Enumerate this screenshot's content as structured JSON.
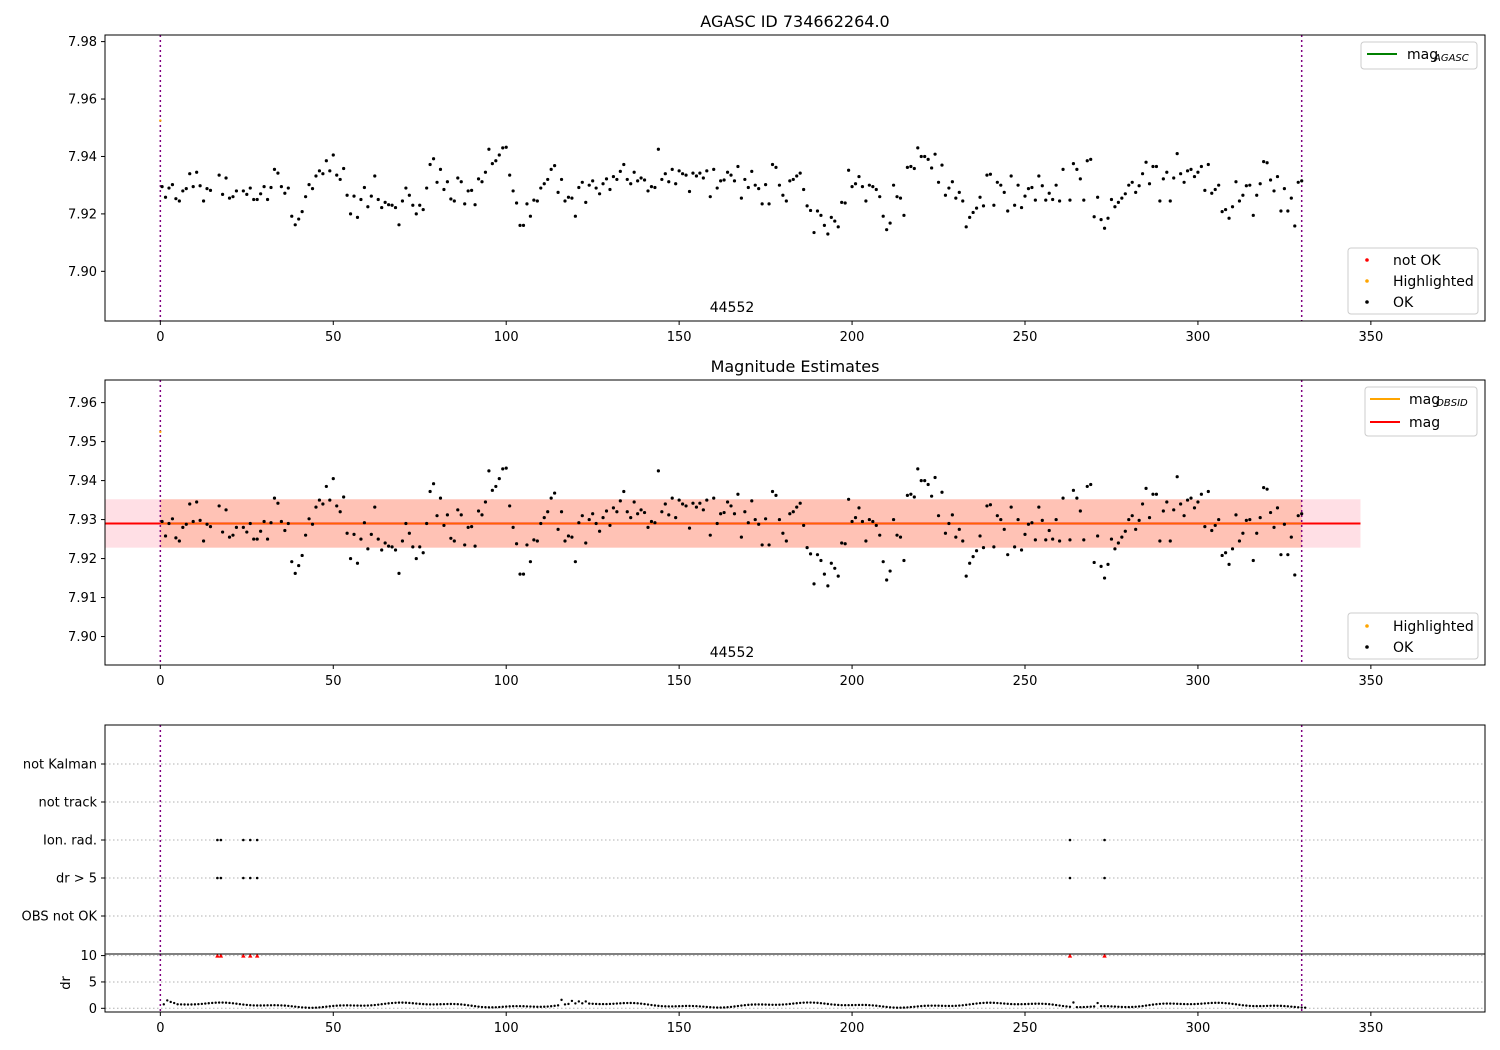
{
  "chart_data": [
    {
      "type": "scatter",
      "title": "AGASC ID 734662264.0",
      "xlim": [
        -16,
        383
      ],
      "ylim": [
        7.8827,
        7.9823
      ],
      "xticks": [
        0,
        50,
        100,
        150,
        200,
        250,
        300,
        350
      ],
      "yticks": [
        7.9,
        7.92,
        7.94,
        7.96,
        7.98
      ],
      "ytick_labels": [
        "7.90",
        "7.92",
        "7.94",
        "7.96",
        "7.98"
      ],
      "annotation": "44552",
      "vlines": [
        0,
        330
      ],
      "grid": false,
      "legend_lines": {
        "position": "top-right",
        "entries": [
          {
            "main": "mag",
            "sub": "AGASC",
            "color": "#008000"
          }
        ]
      },
      "legend_points": {
        "position": "bottom-right",
        "entries": [
          {
            "label": "not OK",
            "color": "#ff0000"
          },
          {
            "label": "Highlighted",
            "color": "#ffa500"
          },
          {
            "label": "OK",
            "color": "#000000"
          }
        ]
      },
      "highlighted_point": {
        "x": 0,
        "y": 7.9525
      },
      "series_ok_shared": true
    },
    {
      "type": "scatter",
      "title": "Magnitude Estimates",
      "xlim": [
        -16,
        383
      ],
      "ylim": [
        7.8927,
        7.9658
      ],
      "xticks": [
        0,
        50,
        100,
        150,
        200,
        250,
        300,
        350
      ],
      "yticks": [
        7.9,
        7.91,
        7.92,
        7.93,
        7.94,
        7.95,
        7.96
      ],
      "ytick_labels": [
        "7.90",
        "7.91",
        "7.92",
        "7.93",
        "7.94",
        "7.95",
        "7.96"
      ],
      "annotation": "44552",
      "vlines": [
        0,
        330
      ],
      "grid": false,
      "mag_line": {
        "y": 7.929,
        "x0": -16,
        "x1": 347,
        "color": "#ff0000"
      },
      "band_outer": {
        "y0": 7.9228,
        "y1": 7.9352,
        "x0": -16,
        "x1": 347,
        "color": "#ffc0cb"
      },
      "band_inner": {
        "y0": 7.9228,
        "y1": 7.9352,
        "x0": 0,
        "x1": 330,
        "color": "#ffa07a"
      },
      "legend_lines": {
        "position": "top-right",
        "entries": [
          {
            "main": "mag",
            "sub": "OBSID",
            "color": "#ffa500"
          },
          {
            "main": "mag",
            "sub": "",
            "color": "#ff0000"
          }
        ]
      },
      "legend_points": {
        "position": "bottom-right",
        "entries": [
          {
            "label": "Highlighted",
            "color": "#ffa500"
          },
          {
            "label": "OK",
            "color": "#000000"
          }
        ]
      },
      "highlighted_point": {
        "x": 0,
        "y": 7.9525
      }
    },
    {
      "type": "scatter",
      "title": "",
      "xlim": [
        -16,
        383
      ],
      "categories": [
        "not Kalman",
        "not track",
        "Ion. rad.",
        "dr > 5",
        "OBS not OK"
      ],
      "vlines": [
        0,
        330
      ],
      "flags": {
        "Ion. rad.": [
          16.5,
          17.5,
          24,
          26,
          28,
          263,
          273
        ],
        "dr > 5": [
          16.5,
          17.5,
          24,
          26,
          28,
          263,
          273
        ]
      }
    },
    {
      "type": "scatter",
      "title": "",
      "xlim": [
        -16,
        383
      ],
      "ylim": [
        -0.7,
        10.3
      ],
      "xticks": [
        0,
        50,
        100,
        150,
        200,
        250,
        300,
        350
      ],
      "yticks": [
        0,
        5,
        10
      ],
      "ytick_labels": [
        "0",
        "5",
        "10"
      ],
      "ylabel": "dr",
      "vlines": [
        0,
        330
      ],
      "clipped_markers": [
        16.5,
        17.5,
        24,
        26,
        28,
        263,
        273
      ],
      "clip_value": 10
    }
  ],
  "mag_points": [
    [
      0.5,
      7.9295
    ],
    [
      1.5,
      7.9258
    ],
    [
      2.5,
      7.929
    ],
    [
      3.5,
      7.9302
    ],
    [
      4.5,
      7.9253
    ],
    [
      5.5,
      7.9245
    ],
    [
      6.5,
      7.928
    ],
    [
      7.5,
      7.9288
    ],
    [
      8.5,
      7.934
    ],
    [
      9.5,
      7.9295
    ],
    [
      10.5,
      7.9345
    ],
    [
      11.5,
      7.9298
    ],
    [
      12.5,
      7.9245
    ],
    [
      13.5,
      7.9288
    ],
    [
      14.5,
      7.9282
    ],
    [
      17,
      7.9335
    ],
    [
      18,
      7.9268
    ],
    [
      19,
      7.9325
    ],
    [
      20,
      7.9255
    ],
    [
      21,
      7.926
    ],
    [
      22,
      7.928
    ],
    [
      24,
      7.928
    ],
    [
      25,
      7.9268
    ],
    [
      26,
      7.929
    ],
    [
      27,
      7.925
    ],
    [
      28,
      7.925
    ],
    [
      29,
      7.927
    ],
    [
      30,
      7.9295
    ],
    [
      31,
      7.925
    ],
    [
      32,
      7.9292
    ],
    [
      33,
      7.9355
    ],
    [
      34,
      7.9342
    ],
    [
      35,
      7.9295
    ],
    [
      36,
      7.9272
    ],
    [
      37,
      7.929
    ],
    [
      38,
      7.9192
    ],
    [
      39,
      7.9162
    ],
    [
      40,
      7.9182
    ],
    [
      41,
      7.9208
    ],
    [
      42,
      7.926
    ],
    [
      43,
      7.9302
    ],
    [
      44,
      7.9288
    ],
    [
      45,
      7.9332
    ],
    [
      46,
      7.935
    ],
    [
      47,
      7.934
    ],
    [
      48,
      7.9385
    ],
    [
      49,
      7.935
    ],
    [
      50,
      7.9405
    ],
    [
      51,
      7.9335
    ],
    [
      52,
      7.932
    ],
    [
      53,
      7.9358
    ],
    [
      54,
      7.9265
    ],
    [
      55,
      7.92
    ],
    [
      56,
      7.9262
    ],
    [
      57,
      7.9188
    ],
    [
      58,
      7.925
    ],
    [
      59,
      7.9292
    ],
    [
      60,
      7.9225
    ],
    [
      61,
      7.9262
    ],
    [
      62,
      7.9332
    ],
    [
      63,
      7.925
    ],
    [
      64,
      7.9222
    ],
    [
      65,
      7.924
    ],
    [
      66,
      7.9232
    ],
    [
      67,
      7.923
    ],
    [
      68,
      7.9222
    ],
    [
      69,
      7.9162
    ],
    [
      70,
      7.9245
    ],
    [
      71,
      7.929
    ],
    [
      72,
      7.9265
    ],
    [
      73,
      7.923
    ],
    [
      74,
      7.92
    ],
    [
      75,
      7.923
    ],
    [
      76,
      7.9215
    ],
    [
      77,
      7.929
    ],
    [
      78,
      7.9372
    ],
    [
      79,
      7.9392
    ],
    [
      80,
      7.931
    ],
    [
      81,
      7.9355
    ],
    [
      82,
      7.9285
    ],
    [
      83,
      7.9312
    ],
    [
      84,
      7.9252
    ],
    [
      85,
      7.9245
    ],
    [
      86,
      7.9325
    ],
    [
      87,
      7.9312
    ],
    [
      88,
      7.9235
    ],
    [
      89,
      7.928
    ],
    [
      90,
      7.9282
    ],
    [
      91,
      7.9232
    ],
    [
      92,
      7.9322
    ],
    [
      93,
      7.9312
    ],
    [
      94,
      7.9345
    ],
    [
      95,
      7.9425
    ],
    [
      96,
      7.9375
    ],
    [
      97,
      7.9385
    ],
    [
      98,
      7.9405
    ],
    [
      99,
      7.943
    ],
    [
      100,
      7.9432
    ],
    [
      101,
      7.9335
    ],
    [
      102,
      7.928
    ],
    [
      103,
      7.9238
    ],
    [
      104,
      7.916
    ],
    [
      105,
      7.916
    ],
    [
      106,
      7.9235
    ],
    [
      107,
      7.9192
    ],
    [
      108,
      7.9248
    ],
    [
      109,
      7.9245
    ],
    [
      110,
      7.929
    ],
    [
      111,
      7.9305
    ],
    [
      112,
      7.932
    ],
    [
      113,
      7.9355
    ],
    [
      114,
      7.9368
    ],
    [
      115,
      7.9275
    ],
    [
      116,
      7.932
    ],
    [
      117,
      7.9245
    ],
    [
      118,
      7.9258
    ],
    [
      119,
      7.9255
    ],
    [
      120,
      7.9192
    ],
    [
      121,
      7.9292
    ],
    [
      122,
      7.931
    ],
    [
      123,
      7.924
    ],
    [
      124,
      7.93
    ],
    [
      125,
      7.9315
    ],
    [
      126,
      7.929
    ],
    [
      127,
      7.927
    ],
    [
      128,
      7.9305
    ],
    [
      129,
      7.9322
    ],
    [
      130,
      7.9285
    ],
    [
      131,
      7.933
    ],
    [
      132,
      7.932
    ],
    [
      133,
      7.9348
    ],
    [
      134,
      7.9372
    ],
    [
      135,
      7.932
    ],
    [
      136,
      7.9305
    ],
    [
      137,
      7.9345
    ],
    [
      138,
      7.9315
    ],
    [
      139,
      7.9325
    ],
    [
      140,
      7.9318
    ],
    [
      141,
      7.928
    ],
    [
      142,
      7.9295
    ],
    [
      143,
      7.9292
    ],
    [
      144,
      7.9425
    ],
    [
      145,
      7.932
    ],
    [
      146,
      7.934
    ],
    [
      147,
      7.9312
    ],
    [
      148,
      7.9355
    ],
    [
      149,
      7.9305
    ],
    [
      150,
      7.935
    ],
    [
      151,
      7.934
    ],
    [
      152,
      7.9335
    ],
    [
      153,
      7.9278
    ],
    [
      154,
      7.9342
    ],
    [
      155,
      7.9332
    ],
    [
      156,
      7.9342
    ],
    [
      157,
      7.9325
    ],
    [
      158,
      7.935
    ],
    [
      159,
      7.926
    ],
    [
      160,
      7.9355
    ],
    [
      161,
      7.929
    ],
    [
      162,
      7.9315
    ],
    [
      163,
      7.9318
    ],
    [
      164,
      7.9345
    ],
    [
      165,
      7.9335
    ],
    [
      166,
      7.9315
    ],
    [
      167,
      7.9365
    ],
    [
      168,
      7.9255
    ],
    [
      169,
      7.932
    ],
    [
      170,
      7.9292
    ],
    [
      171,
      7.9348
    ],
    [
      172,
      7.93
    ],
    [
      173,
      7.9288
    ],
    [
      174,
      7.9235
    ],
    [
      175,
      7.9302
    ],
    [
      176,
      7.9235
    ],
    [
      177,
      7.9372
    ],
    [
      178,
      7.9362
    ],
    [
      179,
      7.93
    ],
    [
      180,
      7.9265
    ],
    [
      181,
      7.9245
    ],
    [
      182,
      7.9315
    ],
    [
      183,
      7.932
    ],
    [
      184,
      7.9332
    ],
    [
      185,
      7.9342
    ],
    [
      186,
      7.9285
    ],
    [
      187,
      7.9228
    ],
    [
      188,
      7.9212
    ],
    [
      189,
      7.9135
    ],
    [
      190,
      7.921
    ],
    [
      191,
      7.9195
    ],
    [
      192,
      7.916
    ],
    [
      193,
      7.913
    ],
    [
      194,
      7.9188
    ],
    [
      195,
      7.9175
    ],
    [
      196,
      7.9155
    ],
    [
      197,
      7.924
    ],
    [
      198,
      7.9238
    ],
    [
      199,
      7.9352
    ],
    [
      200,
      7.9295
    ],
    [
      201,
      7.9305
    ],
    [
      202,
      7.933
    ],
    [
      203,
      7.9295
    ],
    [
      204,
      7.9245
    ],
    [
      205,
      7.93
    ],
    [
      206,
      7.9295
    ],
    [
      207,
      7.9285
    ],
    [
      208,
      7.926
    ],
    [
      209,
      7.9192
    ],
    [
      210,
      7.9145
    ],
    [
      211,
      7.9168
    ],
    [
      212,
      7.93
    ],
    [
      213,
      7.926
    ],
    [
      214,
      7.9255
    ],
    [
      215,
      7.9195
    ],
    [
      216,
      7.9362
    ],
    [
      217,
      7.9365
    ],
    [
      218,
      7.9358
    ],
    [
      219,
      7.943
    ],
    [
      220,
      7.94
    ],
    [
      221,
      7.94
    ],
    [
      222,
      7.939
    ],
    [
      223,
      7.936
    ],
    [
      224,
      7.9408
    ],
    [
      225,
      7.931
    ],
    [
      226,
      7.937
    ],
    [
      227,
      7.9265
    ],
    [
      228,
      7.929
    ],
    [
      229,
      7.9312
    ],
    [
      230,
      7.9255
    ],
    [
      231,
      7.9275
    ],
    [
      232,
      7.9245
    ],
    [
      233,
      7.9155
    ],
    [
      234,
      7.9188
    ],
    [
      235,
      7.9205
    ],
    [
      236,
      7.922
    ],
    [
      237,
      7.9258
    ],
    [
      238,
      7.9228
    ],
    [
      239,
      7.9335
    ],
    [
      240,
      7.9338
    ],
    [
      241,
      7.923
    ],
    [
      242,
      7.931
    ],
    [
      243,
      7.93
    ],
    [
      244,
      7.9275
    ],
    [
      245,
      7.921
    ],
    [
      246,
      7.9332
    ],
    [
      247,
      7.923
    ],
    [
      248,
      7.93
    ],
    [
      249,
      7.9222
    ],
    [
      250,
      7.9262
    ],
    [
      251,
      7.9288
    ],
    [
      252,
      7.9292
    ],
    [
      253,
      7.9248
    ],
    [
      254,
      7.9332
    ],
    [
      255,
      7.9298
    ],
    [
      256,
      7.9248
    ],
    [
      257,
      7.9272
    ],
    [
      258,
      7.925
    ],
    [
      259,
      7.93
    ],
    [
      260,
      7.9245
    ],
    [
      261,
      7.9355
    ],
    [
      263,
      7.9248
    ],
    [
      264,
      7.9375
    ],
    [
      265,
      7.9355
    ],
    [
      266,
      7.9322
    ],
    [
      267,
      7.9248
    ],
    [
      268,
      7.9385
    ],
    [
      269,
      7.939
    ],
    [
      270,
      7.919
    ],
    [
      271,
      7.9258
    ],
    [
      272,
      7.918
    ],
    [
      273,
      7.915
    ],
    [
      274,
      7.9185
    ],
    [
      275,
      7.925
    ],
    [
      276,
      7.9225
    ],
    [
      277,
      7.924
    ],
    [
      278,
      7.9255
    ],
    [
      279,
      7.927
    ],
    [
      280,
      7.93
    ],
    [
      281,
      7.931
    ],
    [
      282,
      7.9275
    ],
    [
      283,
      7.9298
    ],
    [
      284,
      7.934
    ],
    [
      285,
      7.938
    ],
    [
      286,
      7.9305
    ],
    [
      287,
      7.9365
    ],
    [
      288,
      7.9365
    ],
    [
      289,
      7.9245
    ],
    [
      290,
      7.9322
    ],
    [
      291,
      7.9345
    ],
    [
      292,
      7.9245
    ],
    [
      293,
      7.9325
    ],
    [
      294,
      7.941
    ],
    [
      295,
      7.934
    ],
    [
      296,
      7.931
    ],
    [
      297,
      7.935
    ],
    [
      298,
      7.9355
    ],
    [
      299,
      7.933
    ],
    [
      300,
      7.9345
    ],
    [
      301,
      7.9365
    ],
    [
      302,
      7.9282
    ],
    [
      303,
      7.9372
    ],
    [
      304,
      7.9272
    ],
    [
      305,
      7.9285
    ],
    [
      306,
      7.93
    ],
    [
      307,
      7.9208
    ],
    [
      308,
      7.9215
    ],
    [
      309,
      7.9185
    ],
    [
      310,
      7.9225
    ],
    [
      311,
      7.9312
    ],
    [
      312,
      7.9245
    ],
    [
      313,
      7.9265
    ],
    [
      314,
      7.9298
    ],
    [
      315,
      7.93
    ],
    [
      316,
      7.9195
    ],
    [
      317,
      7.9265
    ],
    [
      318,
      7.9305
    ],
    [
      319,
      7.9382
    ],
    [
      320,
      7.9378
    ],
    [
      321,
      7.9318
    ],
    [
      322,
      7.928
    ],
    [
      323,
      7.933
    ],
    [
      324,
      7.921
    ],
    [
      325,
      7.9288
    ],
    [
      326,
      7.921
    ],
    [
      327,
      7.9255
    ],
    [
      328,
      7.9158
    ],
    [
      329,
      7.931
    ],
    [
      330,
      7.9315
    ]
  ],
  "dr_points_base": 0.6,
  "dr_peaks": [
    [
      1,
      1.5
    ],
    [
      2,
      1.2
    ],
    [
      3,
      1.0
    ],
    [
      115,
      1.6
    ],
    [
      118,
      1.4
    ],
    [
      120,
      1.3
    ],
    [
      122,
      1.3
    ],
    [
      263,
      1.1
    ],
    [
      270,
      1.0
    ]
  ]
}
